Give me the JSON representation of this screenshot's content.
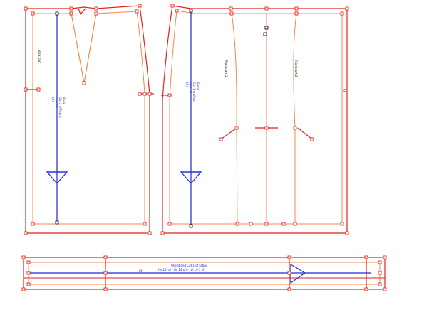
{
  "pieces": {
    "back": {
      "label_lines": [
        "Back",
        "Cut 2 of Fabric",
        "Size 10",
        "(A)"
      ],
      "dart_label": "Back dart"
    },
    "front": {
      "label_lines": [
        "Front",
        "Cut 1 on Fold",
        "Size 10",
        "(A)"
      ],
      "dart_label_left": "Front dart 1",
      "dart_label_right": "Front dart 2",
      "marker": "CF"
    },
    "waistband": {
      "label_lines": [
        "Waistband  Cut 1 of Fabric",
        "(in 10) pi - (in 14 pi) - (pi 10.5 pi)"
      ],
      "marker": "Cf"
    }
  },
  "colors": {
    "cut_line": "#e2231a",
    "seam_line": "#f08a4b",
    "grainline": "#1f2bd1"
  },
  "icons": [
    "grainline-arrow-icon",
    "notch-icon"
  ]
}
